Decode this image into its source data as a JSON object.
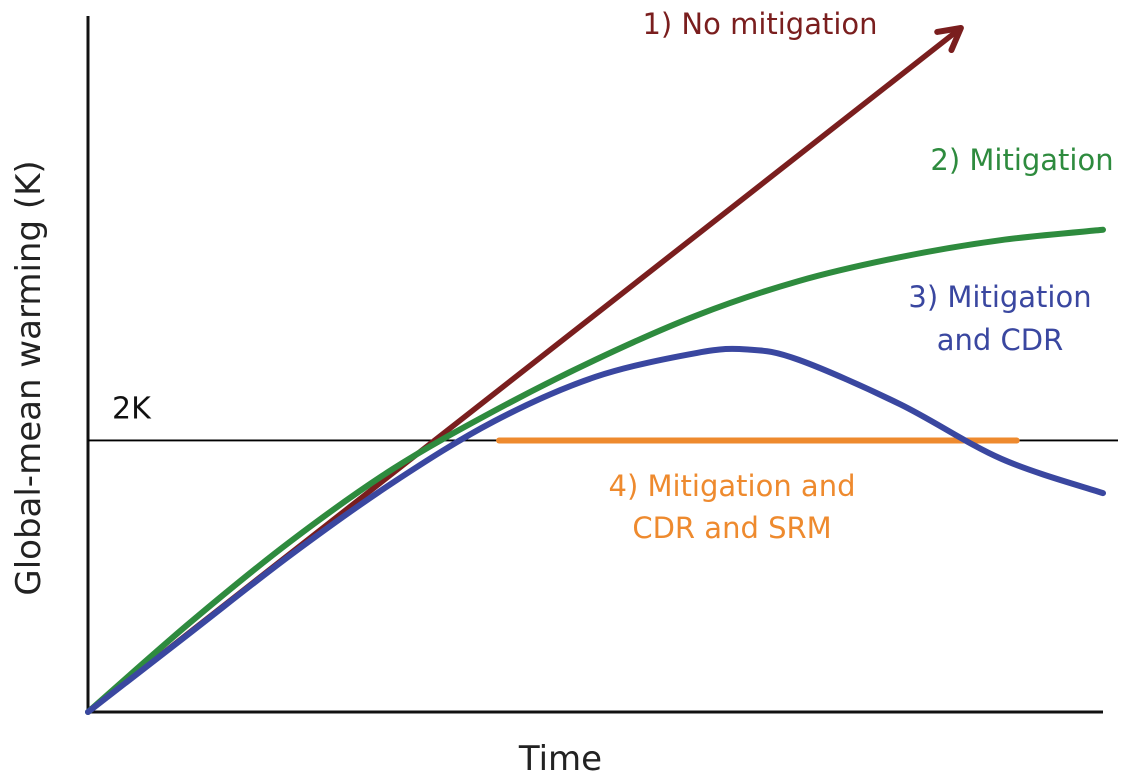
{
  "chart_data": {
    "type": "line",
    "title": "",
    "xlabel": "Time",
    "ylabel": "Global-mean warming (K)",
    "xlim": [
      0,
      100
    ],
    "ylim": [
      0,
      100
    ],
    "grid": false,
    "legend": "inline labels",
    "x_ticks": [],
    "y_ticks": [],
    "reference_line": {
      "label": "2K",
      "y": 39.7,
      "color": "#000000"
    },
    "series": [
      {
        "name": "1) No mitigation",
        "label_lines": [
          "1) No mitigation"
        ],
        "color": "#7a1e1e",
        "arrow_end": true,
        "x": [
          0,
          86
        ],
        "y": [
          0,
          100
        ]
      },
      {
        "name": "2) Mitigation",
        "label_lines": [
          "2) Mitigation"
        ],
        "color": "#2e8b3e",
        "arrow_end": false,
        "x": [
          0,
          10,
          20,
          30,
          40,
          50,
          60,
          70,
          80,
          90,
          100
        ],
        "y": [
          0,
          13,
          25,
          35.5,
          44,
          51.5,
          58,
          63,
          66.5,
          69,
          70.5
        ]
      },
      {
        "name": "3) Mitigation and CDR",
        "label_lines": [
          "3) Mitigation",
          "and CDR"
        ],
        "color": "#3a47a0",
        "arrow_end": false,
        "x": [
          0,
          10,
          20,
          30,
          40,
          50,
          60,
          65,
          70,
          80,
          90,
          100
        ],
        "y": [
          0,
          11.5,
          23,
          33.5,
          42.5,
          49,
          52.5,
          53,
          51.5,
          45,
          37,
          32
        ]
      },
      {
        "name": "4) Mitigation and CDR and SRM",
        "label_lines": [
          "4) Mitigation and",
          "CDR and SRM"
        ],
        "color": "#ee8a2e",
        "arrow_end": false,
        "x": [
          0,
          10,
          20,
          30,
          40.5,
          91.5,
          100
        ],
        "y": [
          0,
          11.5,
          23,
          33.5,
          39.7,
          39.7,
          32
        ]
      }
    ]
  }
}
